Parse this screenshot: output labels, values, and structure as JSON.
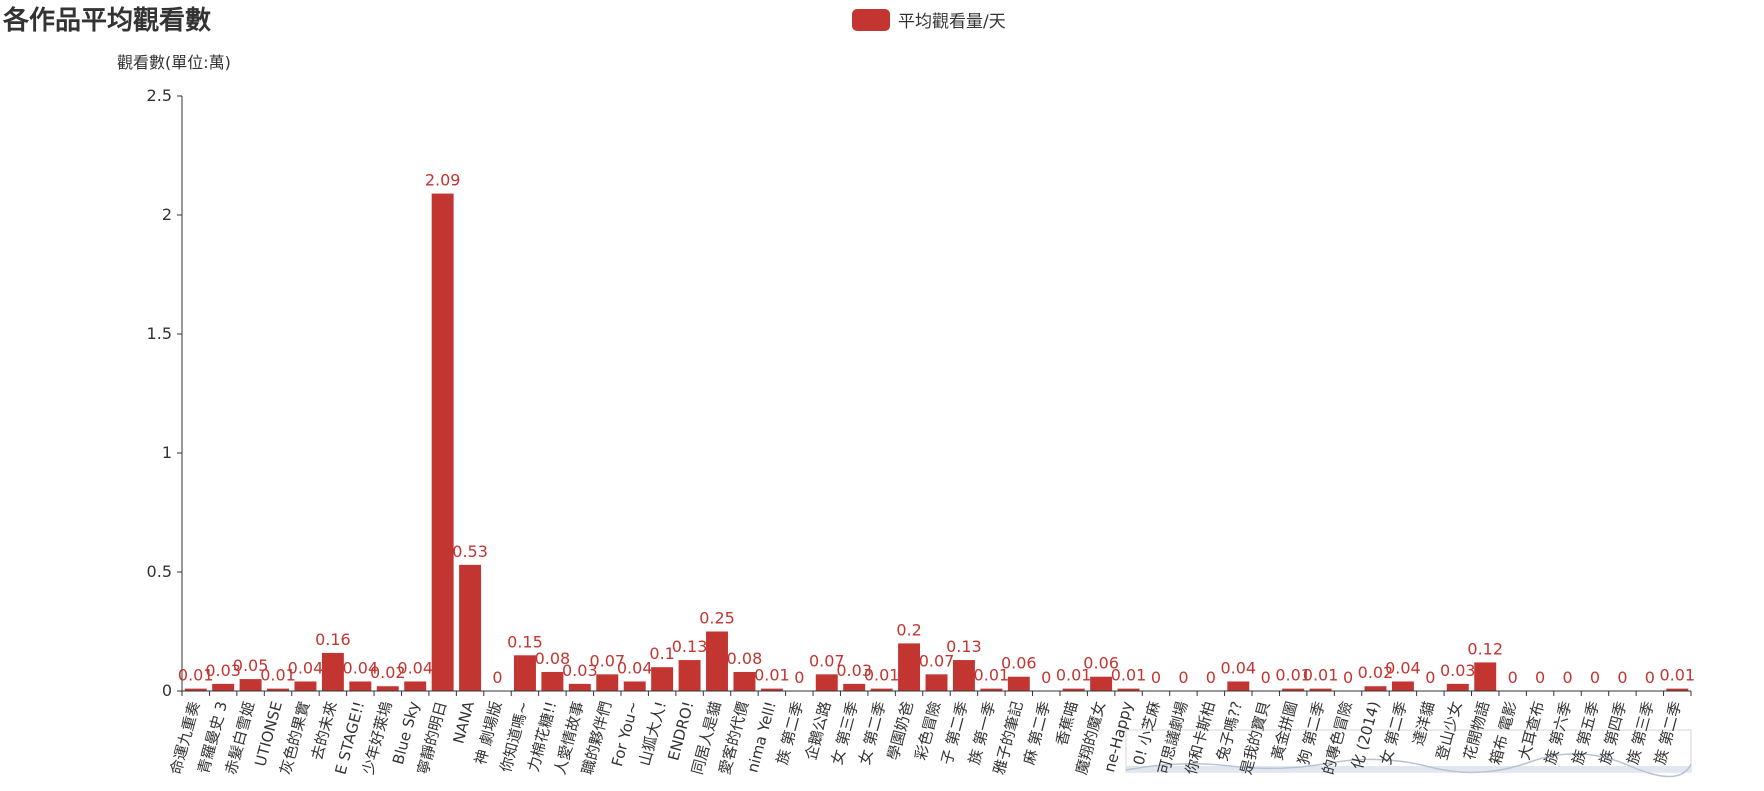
{
  "chart_data": {
    "type": "bar",
    "title": "各作品平均觀看數",
    "ylabel": "觀看數(單位:萬)",
    "ylim": [
      0,
      2.5
    ],
    "yticks": [
      0,
      0.5,
      1,
      1.5,
      2,
      2.5
    ],
    "ytick_labels": [
      "0",
      "0.5",
      "1",
      "1.5",
      "2",
      "2.5"
    ],
    "legend_position": "top-center",
    "bar_color": "#c23531",
    "datazoom_slider": true,
    "categories": [
      "命運九重奏",
      "青羅曼史 3",
      "赤髮白雪姬",
      "UTIONSE",
      "灰色的果實",
      "去的未來",
      "E STAGE!!",
      "少年好萊塢",
      "Blue Sky",
      "寧靜的明日",
      "NANA",
      "神 劇場版",
      "你知道嗎~",
      "力棉花糖!!",
      "人愛情故事",
      "職的夥伴們",
      "For You~",
      "山狐大人!",
      "ENDRO!",
      "同居人是貓",
      "愛客的代價",
      "nima Yell!",
      "族 第二季",
      "企鵝公路",
      "女 第三季",
      "女 第二季",
      "學園奶爸",
      "彩色冒險",
      "子 第二季",
      "族 第一季",
      "雅子的筆記",
      "麻 第二季",
      "香蕉喵",
      "魔翔的魔女",
      "ne-Happy",
      "0! 小芝麻",
      "可思議劇場",
      "你和卡斯柏",
      "兔子嗎??",
      "是我的寶貝",
      "黃金拼圖",
      "狗 第二季",
      "的專色冒險",
      "化 (2014)",
      "女 第二季",
      "達洋貓",
      "登山少女",
      "花開物語",
      "箱布 電影",
      "大耳查布",
      "族 第六季",
      "族 第五季",
      "族 第四季",
      "族 第三季",
      "族 第二季"
    ],
    "series": [
      {
        "name": "平均觀看量/天",
        "values": [
          0.01,
          0.03,
          0.05,
          0.01,
          0.04,
          0.16,
          0.04,
          0.02,
          0.04,
          2.09,
          0.53,
          0,
          0.15,
          0.08,
          0.03,
          0.07,
          0.04,
          0.1,
          0.13,
          0.25,
          0.08,
          0.01,
          0,
          0.07,
          0.03,
          0.01,
          0.2,
          0.07,
          0.13,
          0.01,
          0.06,
          0,
          0.01,
          0.06,
          0.01,
          0,
          0,
          0,
          0.04,
          0,
          0.01,
          0.01,
          0,
          0.02,
          0.04,
          0,
          0.03,
          0.12,
          0,
          0,
          0,
          0,
          0,
          0,
          0.01
        ]
      }
    ]
  }
}
